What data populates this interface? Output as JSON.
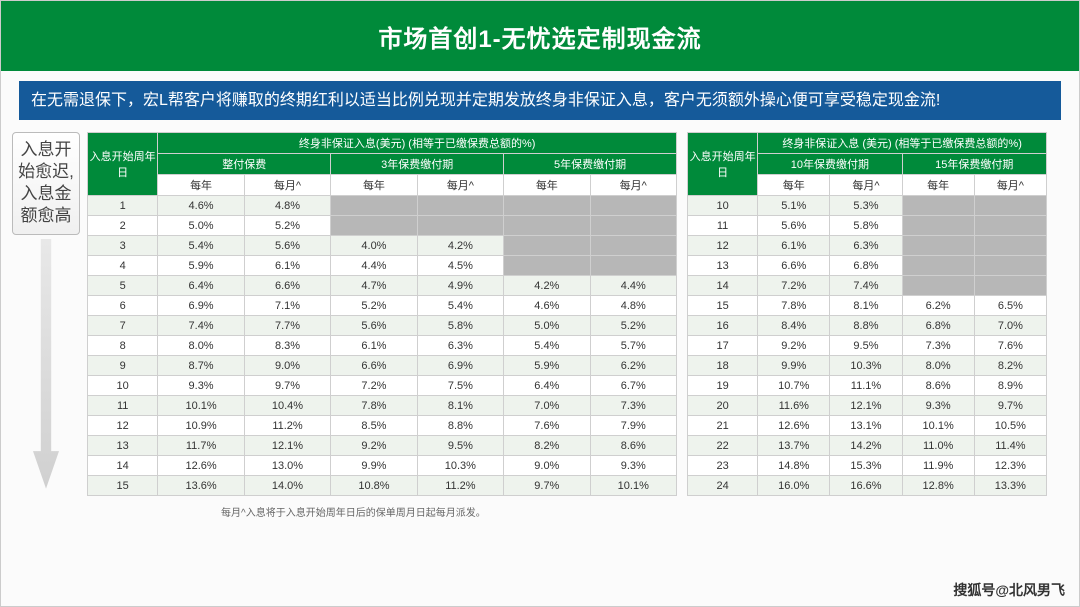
{
  "colors": {
    "green": "#008a3a",
    "blue": "#155a9a",
    "grayFill": "#b7b7b7",
    "altRow": "#eef3ed",
    "border": "#cfcfcf"
  },
  "title": "市场首创1-无忧选定制现金流",
  "desc": "在无需退保下，宏L帮客户将赚取的终期红利以适当比例兑现并定期发放终身非保证入息，客户无须额外操心便可享受稳定现金流!",
  "side": {
    "line1": "入息开",
    "line2": "始愈迟,",
    "line3": "入息金",
    "line4": "额愈高"
  },
  "table1": {
    "header_top": "终身非保证入息(美元) (相等于已缴保费总额的%)",
    "col_period": "入息开始周年日",
    "groups": [
      "整付保费",
      "3年保费缴付期",
      "5年保费缴付期"
    ],
    "sub": [
      "每年",
      "每月^"
    ],
    "rows": [
      {
        "p": "1",
        "g1": [
          "4.6%",
          "4.8%"
        ],
        "g2": [
          "",
          ""
        ],
        "g3": [
          "",
          ""
        ]
      },
      {
        "p": "2",
        "g1": [
          "5.0%",
          "5.2%"
        ],
        "g2": [
          "",
          ""
        ],
        "g3": [
          "",
          ""
        ]
      },
      {
        "p": "3",
        "g1": [
          "5.4%",
          "5.6%"
        ],
        "g2": [
          "4.0%",
          "4.2%"
        ],
        "g3": [
          "",
          ""
        ]
      },
      {
        "p": "4",
        "g1": [
          "5.9%",
          "6.1%"
        ],
        "g2": [
          "4.4%",
          "4.5%"
        ],
        "g3": [
          "",
          ""
        ]
      },
      {
        "p": "5",
        "g1": [
          "6.4%",
          "6.6%"
        ],
        "g2": [
          "4.7%",
          "4.9%"
        ],
        "g3": [
          "4.2%",
          "4.4%"
        ]
      },
      {
        "p": "6",
        "g1": [
          "6.9%",
          "7.1%"
        ],
        "g2": [
          "5.2%",
          "5.4%"
        ],
        "g3": [
          "4.6%",
          "4.8%"
        ]
      },
      {
        "p": "7",
        "g1": [
          "7.4%",
          "7.7%"
        ],
        "g2": [
          "5.6%",
          "5.8%"
        ],
        "g3": [
          "5.0%",
          "5.2%"
        ]
      },
      {
        "p": "8",
        "g1": [
          "8.0%",
          "8.3%"
        ],
        "g2": [
          "6.1%",
          "6.3%"
        ],
        "g3": [
          "5.4%",
          "5.7%"
        ]
      },
      {
        "p": "9",
        "g1": [
          "8.7%",
          "9.0%"
        ],
        "g2": [
          "6.6%",
          "6.9%"
        ],
        "g3": [
          "5.9%",
          "6.2%"
        ]
      },
      {
        "p": "10",
        "g1": [
          "9.3%",
          "9.7%"
        ],
        "g2": [
          "7.2%",
          "7.5%"
        ],
        "g3": [
          "6.4%",
          "6.7%"
        ]
      },
      {
        "p": "11",
        "g1": [
          "10.1%",
          "10.4%"
        ],
        "g2": [
          "7.8%",
          "8.1%"
        ],
        "g3": [
          "7.0%",
          "7.3%"
        ]
      },
      {
        "p": "12",
        "g1": [
          "10.9%",
          "11.2%"
        ],
        "g2": [
          "8.5%",
          "8.8%"
        ],
        "g3": [
          "7.6%",
          "7.9%"
        ]
      },
      {
        "p": "13",
        "g1": [
          "11.7%",
          "12.1%"
        ],
        "g2": [
          "9.2%",
          "9.5%"
        ],
        "g3": [
          "8.2%",
          "8.6%"
        ]
      },
      {
        "p": "14",
        "g1": [
          "12.6%",
          "13.0%"
        ],
        "g2": [
          "9.9%",
          "10.3%"
        ],
        "g3": [
          "9.0%",
          "9.3%"
        ]
      },
      {
        "p": "15",
        "g1": [
          "13.6%",
          "14.0%"
        ],
        "g2": [
          "10.8%",
          "11.2%"
        ],
        "g3": [
          "9.7%",
          "10.1%"
        ]
      }
    ]
  },
  "table2": {
    "header_top": "终身非保证入息 (美元) (相等于已缴保费总额的%)",
    "col_period": "入息开始周年日",
    "groups": [
      "10年保费缴付期",
      "15年保费缴付期"
    ],
    "sub": [
      "每年",
      "每月^"
    ],
    "rows": [
      {
        "p": "10",
        "g1": [
          "5.1%",
          "5.3%"
        ],
        "g2": [
          "",
          ""
        ]
      },
      {
        "p": "11",
        "g1": [
          "5.6%",
          "5.8%"
        ],
        "g2": [
          "",
          ""
        ]
      },
      {
        "p": "12",
        "g1": [
          "6.1%",
          "6.3%"
        ],
        "g2": [
          "",
          ""
        ]
      },
      {
        "p": "13",
        "g1": [
          "6.6%",
          "6.8%"
        ],
        "g2": [
          "",
          ""
        ]
      },
      {
        "p": "14",
        "g1": [
          "7.2%",
          "7.4%"
        ],
        "g2": [
          "",
          ""
        ]
      },
      {
        "p": "15",
        "g1": [
          "7.8%",
          "8.1%"
        ],
        "g2": [
          "6.2%",
          "6.5%"
        ]
      },
      {
        "p": "16",
        "g1": [
          "8.4%",
          "8.8%"
        ],
        "g2": [
          "6.8%",
          "7.0%"
        ]
      },
      {
        "p": "17",
        "g1": [
          "9.2%",
          "9.5%"
        ],
        "g2": [
          "7.3%",
          "7.6%"
        ]
      },
      {
        "p": "18",
        "g1": [
          "9.9%",
          "10.3%"
        ],
        "g2": [
          "8.0%",
          "8.2%"
        ]
      },
      {
        "p": "19",
        "g1": [
          "10.7%",
          "11.1%"
        ],
        "g2": [
          "8.6%",
          "8.9%"
        ]
      },
      {
        "p": "20",
        "g1": [
          "11.6%",
          "12.1%"
        ],
        "g2": [
          "9.3%",
          "9.7%"
        ]
      },
      {
        "p": "21",
        "g1": [
          "12.6%",
          "13.1%"
        ],
        "g2": [
          "10.1%",
          "10.5%"
        ]
      },
      {
        "p": "22",
        "g1": [
          "13.7%",
          "14.2%"
        ],
        "g2": [
          "11.0%",
          "11.4%"
        ]
      },
      {
        "p": "23",
        "g1": [
          "14.8%",
          "15.3%"
        ],
        "g2": [
          "11.9%",
          "12.3%"
        ]
      },
      {
        "p": "24",
        "g1": [
          "16.0%",
          "16.6%"
        ],
        "g2": [
          "12.8%",
          "13.3%"
        ]
      }
    ]
  },
  "footnote": "每月^入息将于入息开始周年日后的保单周月日起每月派发。",
  "watermark": "搜狐号@北风男飞",
  "layout": {
    "table1_col_widths": [
      70,
      86,
      86,
      86,
      86,
      86,
      86
    ],
    "table2_col_widths": [
      70,
      72,
      72,
      72,
      72
    ]
  }
}
